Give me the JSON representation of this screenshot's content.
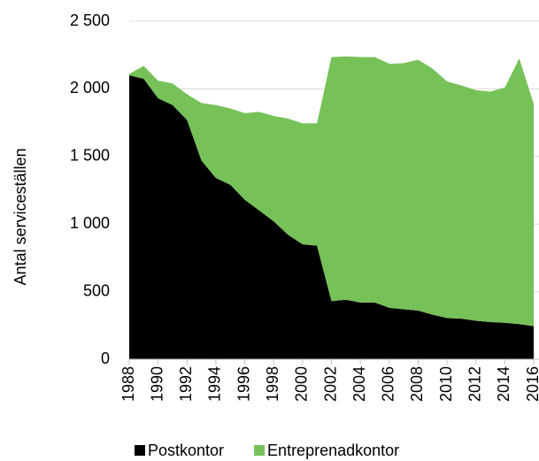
{
  "chart_data": {
    "type": "stacked-area",
    "y_label": "Antal serviceställen",
    "x": [
      1988,
      1989,
      1990,
      1991,
      1992,
      1993,
      1994,
      1995,
      1996,
      1997,
      1998,
      1999,
      2000,
      2001,
      2002,
      2003,
      2004,
      2005,
      2006,
      2007,
      2008,
      2009,
      2010,
      2011,
      2012,
      2013,
      2014,
      2015,
      2016
    ],
    "xlim": [
      1988,
      2016
    ],
    "xticks": [
      1988,
      1990,
      1992,
      1994,
      1996,
      1998,
      2000,
      2002,
      2004,
      2006,
      2008,
      2010,
      2012,
      2014,
      2016
    ],
    "ylim": [
      0,
      2500
    ],
    "yticks": [
      0,
      500,
      {
        "value": 1000,
        "label": "1 000"
      },
      {
        "value": 1500,
        "label": "1 500"
      },
      {
        "value": 2000,
        "label": "2 000"
      },
      {
        "value": 2500,
        "label": "2 500"
      }
    ],
    "grid": true,
    "legend": "bottom",
    "series": [
      {
        "name": "Postkontor",
        "color": "#000000",
        "values": [
          2100,
          2075,
          1930,
          1880,
          1770,
          1470,
          1340,
          1290,
          1180,
          1100,
          1020,
          920,
          850,
          840,
          430,
          440,
          420,
          420,
          380,
          370,
          360,
          330,
          305,
          300,
          285,
          275,
          270,
          260,
          245
        ]
      },
      {
        "name": "Entreprenadkontor",
        "color": "#77c159",
        "values": [
          10,
          95,
          130,
          160,
          190,
          425,
          540,
          565,
          640,
          730,
          780,
          860,
          895,
          905,
          1805,
          1800,
          1815,
          1815,
          1805,
          1820,
          1855,
          1820,
          1750,
          1725,
          1705,
          1705,
          1740,
          1965,
          1645
        ]
      }
    ]
  }
}
